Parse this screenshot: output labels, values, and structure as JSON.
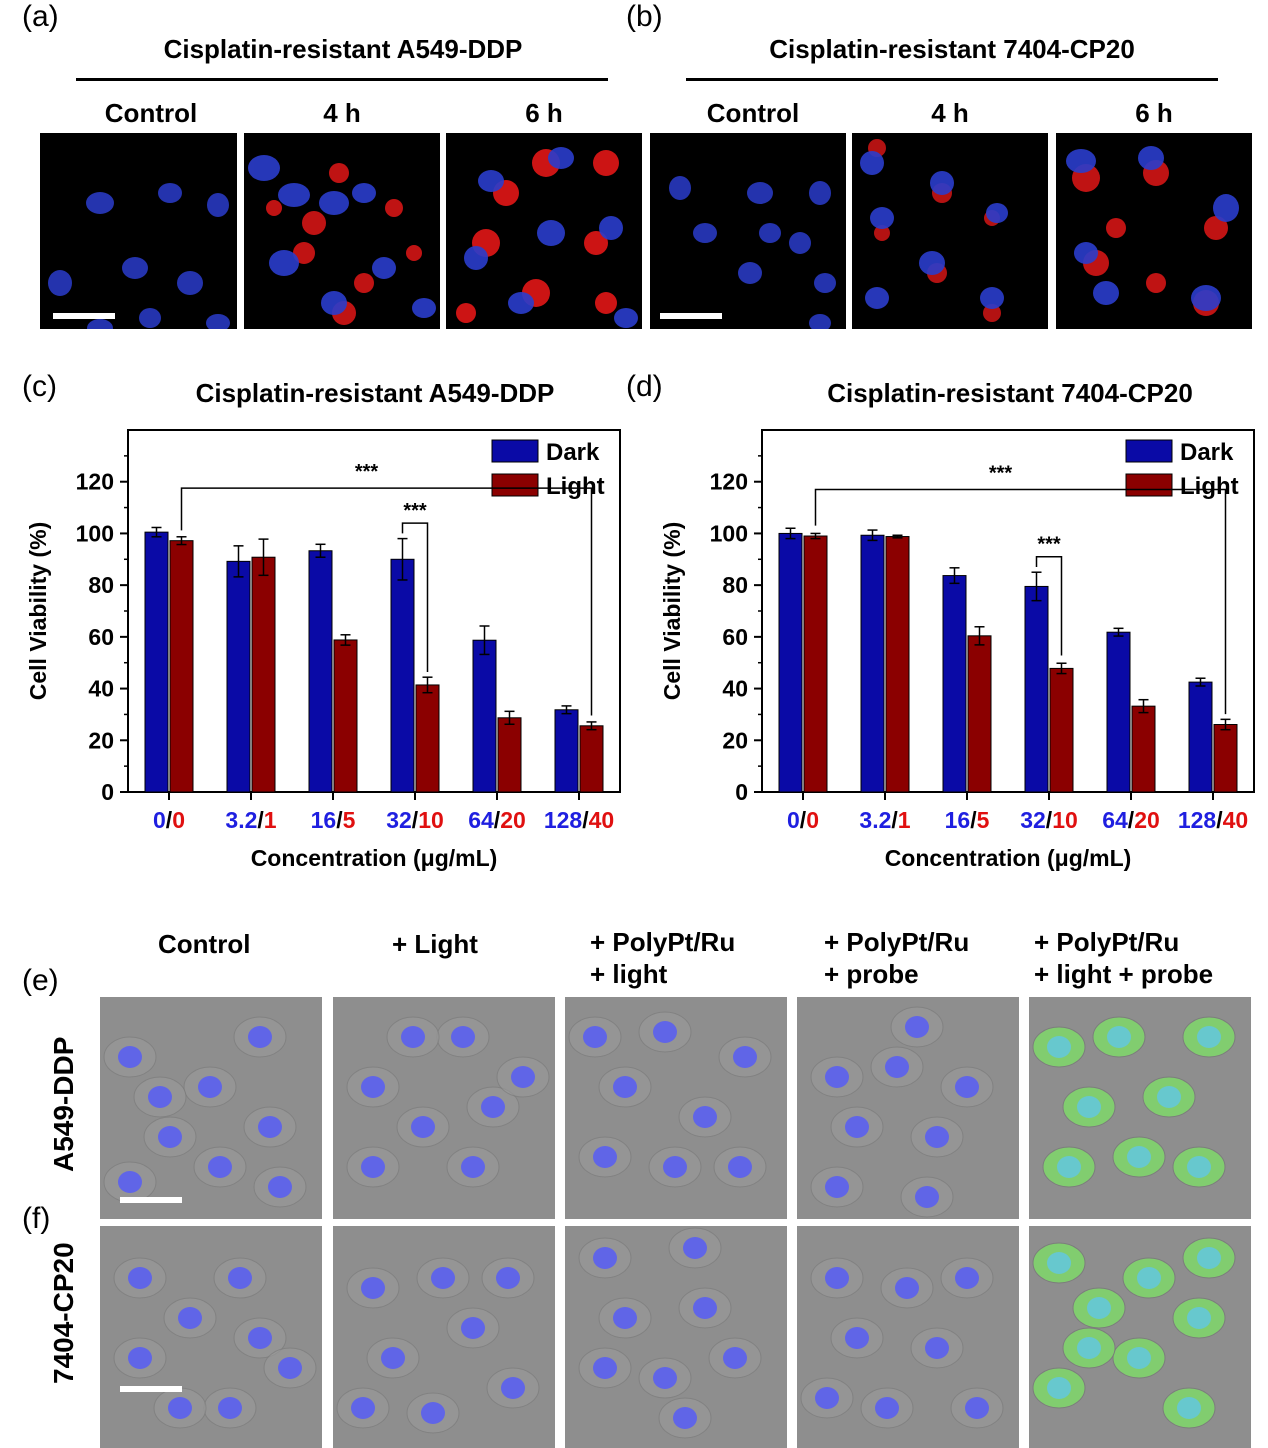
{
  "panels": {
    "a": {
      "label": "(a)",
      "title": "Cisplatin-resistant A549-DDP",
      "columns": [
        "Control",
        "4 h",
        "6 h"
      ]
    },
    "b": {
      "label": "(b)",
      "title": "Cisplatin-resistant 7404-CP20",
      "columns": [
        "Control",
        "4 h",
        "6 h"
      ]
    },
    "c": {
      "label": "(c)",
      "title": "Cisplatin-resistant A549-DDP"
    },
    "d": {
      "label": "(d)",
      "title": "Cisplatin-resistant 7404-CP20"
    },
    "e": {
      "label": "(e)",
      "row_label": "A549-DDP"
    },
    "f": {
      "label": "(f)",
      "row_label": "7404-CP20"
    },
    "ef_columns": [
      "Control",
      "+ Light",
      "+ PolyPt/Ru\n+ light",
      "+ PolyPt/Ru\n+ probe",
      "+ PolyPt/Ru\n+ light + probe"
    ]
  },
  "colors": {
    "dark_bar": "#0a0aa6",
    "light_bar": "#8b0000",
    "blue_text": "#1f1fe0",
    "red_text": "#e01010",
    "nucleus": "#2b3dcc",
    "red_signal": "#ff1a1a",
    "green_signal": "#7fd96a"
  },
  "chart_data": [
    {
      "type": "bar",
      "title": "Cisplatin-resistant A549-DDP",
      "categories_dark": [
        "0",
        "3.2",
        "16",
        "32",
        "64",
        "128"
      ],
      "categories_light": [
        "0",
        "1",
        "5",
        "10",
        "20",
        "40"
      ],
      "xlabel": "Concentration (μg/mL)",
      "ylabel": "Cell Viability (%)",
      "ylim": [
        0,
        140
      ],
      "yticks": [
        0,
        20,
        40,
        60,
        80,
        100,
        120
      ],
      "legend": "top-right",
      "series": [
        {
          "name": "Dark",
          "values": [
            100.5,
            89.2,
            93.3,
            90.0,
            58.7,
            31.8
          ],
          "errors": [
            1.8,
            6.0,
            2.5,
            8.0,
            5.5,
            1.5
          ]
        },
        {
          "name": "Light",
          "values": [
            97.2,
            90.8,
            58.8,
            41.4,
            28.7,
            25.6
          ],
          "errors": [
            1.5,
            7.0,
            2.0,
            3.0,
            2.5,
            1.5
          ]
        }
      ],
      "significance": [
        {
          "label": "***",
          "from": "Light 0",
          "to": "Light 40"
        },
        {
          "label": "***",
          "from": "Dark 32",
          "to": "Light 10"
        }
      ]
    },
    {
      "type": "bar",
      "title": "Cisplatin-resistant 7404-CP20",
      "categories_dark": [
        "0",
        "3.2",
        "16",
        "32",
        "64",
        "128"
      ],
      "categories_light": [
        "0",
        "1",
        "5",
        "10",
        "20",
        "40"
      ],
      "xlabel": "Concentration (μg/mL)",
      "ylabel": "Cell Viability (%)",
      "ylim": [
        0,
        140
      ],
      "yticks": [
        0,
        20,
        40,
        60,
        80,
        100,
        120
      ],
      "legend": "top-right",
      "series": [
        {
          "name": "Dark",
          "values": [
            100.0,
            99.3,
            83.7,
            79.5,
            61.8,
            42.5
          ],
          "errors": [
            2.0,
            2.0,
            3.0,
            5.5,
            1.5,
            1.5
          ]
        },
        {
          "name": "Light",
          "values": [
            99.0,
            98.8,
            60.4,
            47.8,
            33.2,
            26.1
          ],
          "errors": [
            1.0,
            0.5,
            3.5,
            2.0,
            2.5,
            2.0
          ]
        }
      ],
      "significance": [
        {
          "label": "***",
          "from": "Light 0",
          "to": "Light 40"
        },
        {
          "label": "***",
          "from": "Dark 32",
          "to": "Light 10"
        }
      ]
    }
  ]
}
